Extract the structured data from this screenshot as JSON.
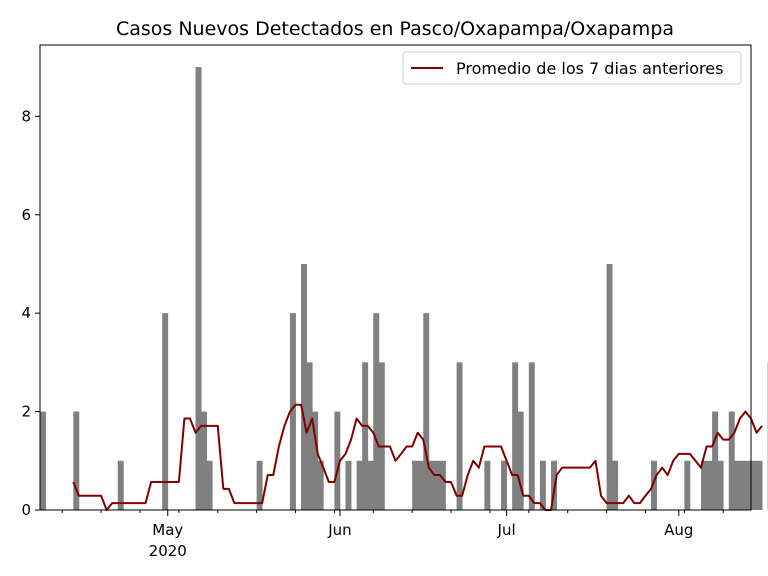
{
  "chart_data": {
    "type": "bar",
    "title": "Casos Nuevos Detectados en Pasco/Oxapampa/Oxapampa",
    "xlabel": "",
    "ylabel": "",
    "x_start": "2020-04-08",
    "x_end": "2020-08-14",
    "ylim": [
      0,
      9.45
    ],
    "y_ticks": [
      0,
      2,
      4,
      6,
      8
    ],
    "x_ticks": [
      {
        "date": "2020-05-01",
        "label": "May",
        "sublabel": "2020"
      },
      {
        "date": "2020-06-01",
        "label": "Jun",
        "sublabel": ""
      },
      {
        "date": "2020-07-01",
        "label": "Jul",
        "sublabel": ""
      },
      {
        "date": "2020-08-01",
        "label": "Aug",
        "sublabel": ""
      }
    ],
    "grid": false,
    "legend_position": "top-right",
    "colors": {
      "bars": "#808080",
      "line": "#800000"
    },
    "series": [
      {
        "name": "",
        "kind": "bar",
        "start": "2020-04-08",
        "values": [
          2,
          0,
          0,
          0,
          0,
          0,
          2,
          0,
          0,
          0,
          0,
          0,
          0,
          0,
          1,
          0,
          0,
          0,
          0,
          0,
          0,
          0,
          4,
          0,
          0,
          0,
          0,
          0,
          9,
          2,
          1,
          0,
          0,
          0,
          0,
          0,
          0,
          0,
          0,
          1,
          0,
          0,
          0,
          0,
          0,
          4,
          0,
          5,
          3,
          2,
          1,
          0,
          0,
          2,
          0,
          1,
          0,
          1,
          3,
          1,
          4,
          3,
          0,
          0,
          0,
          0,
          0,
          1,
          1,
          4,
          1,
          1,
          1,
          0,
          0,
          3,
          0,
          0,
          0,
          0,
          1,
          0,
          0,
          1,
          0,
          3,
          2,
          0,
          3,
          0,
          1,
          0,
          1,
          0,
          0,
          0,
          0,
          0,
          0,
          0,
          0,
          0,
          5,
          1,
          0,
          0,
          0,
          0,
          0,
          0,
          1,
          0,
          0,
          0,
          0,
          0,
          1,
          0,
          0,
          1,
          1,
          2,
          1,
          0,
          2,
          1,
          1,
          1,
          1,
          1,
          0,
          3,
          2,
          3,
          0,
          1,
          2,
          2,
          4,
          1,
          1
        ]
      },
      {
        "name": "Promedio de los 7 dias anteriores",
        "kind": "line",
        "start": "2020-04-14",
        "values": [
          0.57,
          0.29,
          0.29,
          0.29,
          0.29,
          0.29,
          0.0,
          0.14,
          0.14,
          0.14,
          0.14,
          0.14,
          0.14,
          0.14,
          0.57,
          0.57,
          0.57,
          0.57,
          0.57,
          0.57,
          1.86,
          1.86,
          1.57,
          1.71,
          1.71,
          1.71,
          1.71,
          0.43,
          0.43,
          0.14,
          0.14,
          0.14,
          0.14,
          0.14,
          0.14,
          0.71,
          0.71,
          1.29,
          1.71,
          2.0,
          2.14,
          2.14,
          1.57,
          1.86,
          1.14,
          0.86,
          0.57,
          0.57,
          1.0,
          1.14,
          1.43,
          1.86,
          1.71,
          1.71,
          1.57,
          1.29,
          1.29,
          1.29,
          1.0,
          1.14,
          1.29,
          1.29,
          1.57,
          1.43,
          0.86,
          0.71,
          0.71,
          0.57,
          0.57,
          0.29,
          0.29,
          0.71,
          1.0,
          0.86,
          1.29,
          1.29,
          1.29,
          1.29,
          1.0,
          0.71,
          0.71,
          0.29,
          0.29,
          0.14,
          0.14,
          0.0,
          0.0,
          0.71,
          0.86,
          0.86,
          0.86,
          0.86,
          0.86,
          0.86,
          1.0,
          0.29,
          0.14,
          0.14,
          0.14,
          0.14,
          0.29,
          0.14,
          0.14,
          0.29,
          0.43,
          0.71,
          0.86,
          0.71,
          1.0,
          1.14,
          1.14,
          1.14,
          1.0,
          0.86,
          1.29,
          1.29,
          1.57,
          1.43,
          1.43,
          1.57,
          1.86,
          2.0,
          1.86,
          1.57,
          1.71
        ]
      }
    ]
  }
}
